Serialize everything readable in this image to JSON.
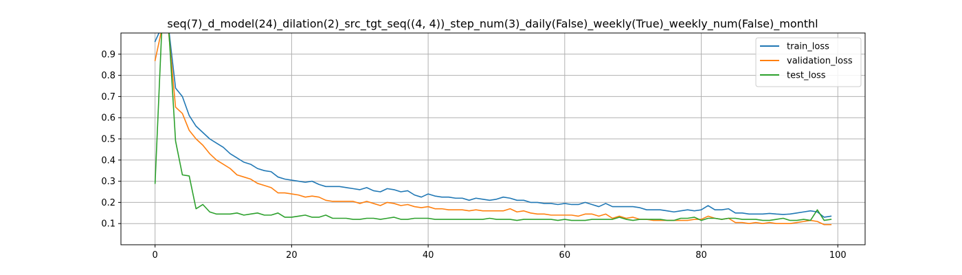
{
  "chart_data": {
    "type": "line",
    "title": "seq(7)_d_model(24)_dilation(2)_src_tgt_seq((4, 4))_step_num(3)_daily(False)_weekly(True)_weekly_num(False)_monthl",
    "xlabel": "",
    "ylabel": "",
    "xlim": [
      -5,
      104
    ],
    "ylim": [
      0.0,
      1.0
    ],
    "xticks": [
      0,
      20,
      40,
      60,
      80,
      100
    ],
    "yticks": [
      0.1,
      0.2,
      0.3,
      0.4,
      0.5,
      0.6,
      0.7,
      0.8,
      0.9
    ],
    "grid": true,
    "legend": "top-right",
    "series": [
      {
        "name": "train_loss",
        "color": "#1f77b4",
        "values": [
          0.96,
          1.03,
          1.02,
          0.74,
          0.7,
          0.61,
          0.56,
          0.53,
          0.5,
          0.48,
          0.46,
          0.43,
          0.41,
          0.39,
          0.38,
          0.36,
          0.35,
          0.345,
          0.32,
          0.31,
          0.305,
          0.3,
          0.295,
          0.3,
          0.285,
          0.275,
          0.275,
          0.275,
          0.27,
          0.265,
          0.26,
          0.27,
          0.255,
          0.25,
          0.265,
          0.26,
          0.25,
          0.255,
          0.235,
          0.225,
          0.24,
          0.23,
          0.225,
          0.225,
          0.22,
          0.22,
          0.21,
          0.22,
          0.215,
          0.21,
          0.215,
          0.225,
          0.22,
          0.21,
          0.21,
          0.2,
          0.2,
          0.195,
          0.195,
          0.19,
          0.195,
          0.19,
          0.19,
          0.2,
          0.19,
          0.18,
          0.195,
          0.18,
          0.18,
          0.18,
          0.18,
          0.175,
          0.165,
          0.165,
          0.165,
          0.16,
          0.155,
          0.16,
          0.165,
          0.16,
          0.165,
          0.185,
          0.165,
          0.165,
          0.17,
          0.15,
          0.15,
          0.145,
          0.145,
          0.145,
          0.148,
          0.145,
          0.143,
          0.145,
          0.15,
          0.155,
          0.16,
          0.155,
          0.13,
          0.135
        ]
      },
      {
        "name": "validation_loss",
        "color": "#ff7f0e",
        "values": [
          0.87,
          1.02,
          1.0,
          0.65,
          0.62,
          0.54,
          0.5,
          0.47,
          0.43,
          0.4,
          0.38,
          0.36,
          0.33,
          0.32,
          0.31,
          0.29,
          0.28,
          0.27,
          0.245,
          0.245,
          0.24,
          0.235,
          0.225,
          0.23,
          0.225,
          0.21,
          0.205,
          0.205,
          0.205,
          0.205,
          0.195,
          0.205,
          0.195,
          0.185,
          0.2,
          0.195,
          0.185,
          0.19,
          0.18,
          0.175,
          0.18,
          0.17,
          0.17,
          0.165,
          0.165,
          0.165,
          0.16,
          0.165,
          0.16,
          0.16,
          0.16,
          0.16,
          0.17,
          0.155,
          0.16,
          0.15,
          0.145,
          0.145,
          0.14,
          0.14,
          0.14,
          0.14,
          0.135,
          0.145,
          0.145,
          0.135,
          0.145,
          0.125,
          0.135,
          0.125,
          0.13,
          0.12,
          0.12,
          0.115,
          0.115,
          0.115,
          0.115,
          0.115,
          0.115,
          0.12,
          0.12,
          0.135,
          0.125,
          0.12,
          0.125,
          0.105,
          0.105,
          0.1,
          0.105,
          0.1,
          0.105,
          0.1,
          0.1,
          0.1,
          0.105,
          0.11,
          0.115,
          0.11,
          0.095,
          0.095
        ]
      },
      {
        "name": "test_loss",
        "color": "#2ca02c",
        "values": [
          0.29,
          1.03,
          1.02,
          0.49,
          0.33,
          0.325,
          0.17,
          0.19,
          0.155,
          0.145,
          0.145,
          0.145,
          0.15,
          0.14,
          0.145,
          0.15,
          0.14,
          0.14,
          0.15,
          0.13,
          0.13,
          0.135,
          0.14,
          0.13,
          0.13,
          0.14,
          0.125,
          0.125,
          0.125,
          0.12,
          0.12,
          0.125,
          0.125,
          0.12,
          0.125,
          0.13,
          0.12,
          0.12,
          0.125,
          0.125,
          0.125,
          0.12,
          0.12,
          0.12,
          0.12,
          0.12,
          0.12,
          0.12,
          0.12,
          0.125,
          0.12,
          0.12,
          0.12,
          0.115,
          0.12,
          0.12,
          0.12,
          0.12,
          0.12,
          0.115,
          0.12,
          0.115,
          0.115,
          0.115,
          0.12,
          0.12,
          0.12,
          0.12,
          0.13,
          0.12,
          0.115,
          0.12,
          0.12,
          0.12,
          0.12,
          0.115,
          0.115,
          0.125,
          0.125,
          0.13,
          0.115,
          0.125,
          0.125,
          0.12,
          0.125,
          0.125,
          0.12,
          0.12,
          0.12,
          0.115,
          0.115,
          0.12,
          0.125,
          0.115,
          0.115,
          0.12,
          0.115,
          0.165,
          0.115,
          0.12
        ]
      }
    ]
  }
}
